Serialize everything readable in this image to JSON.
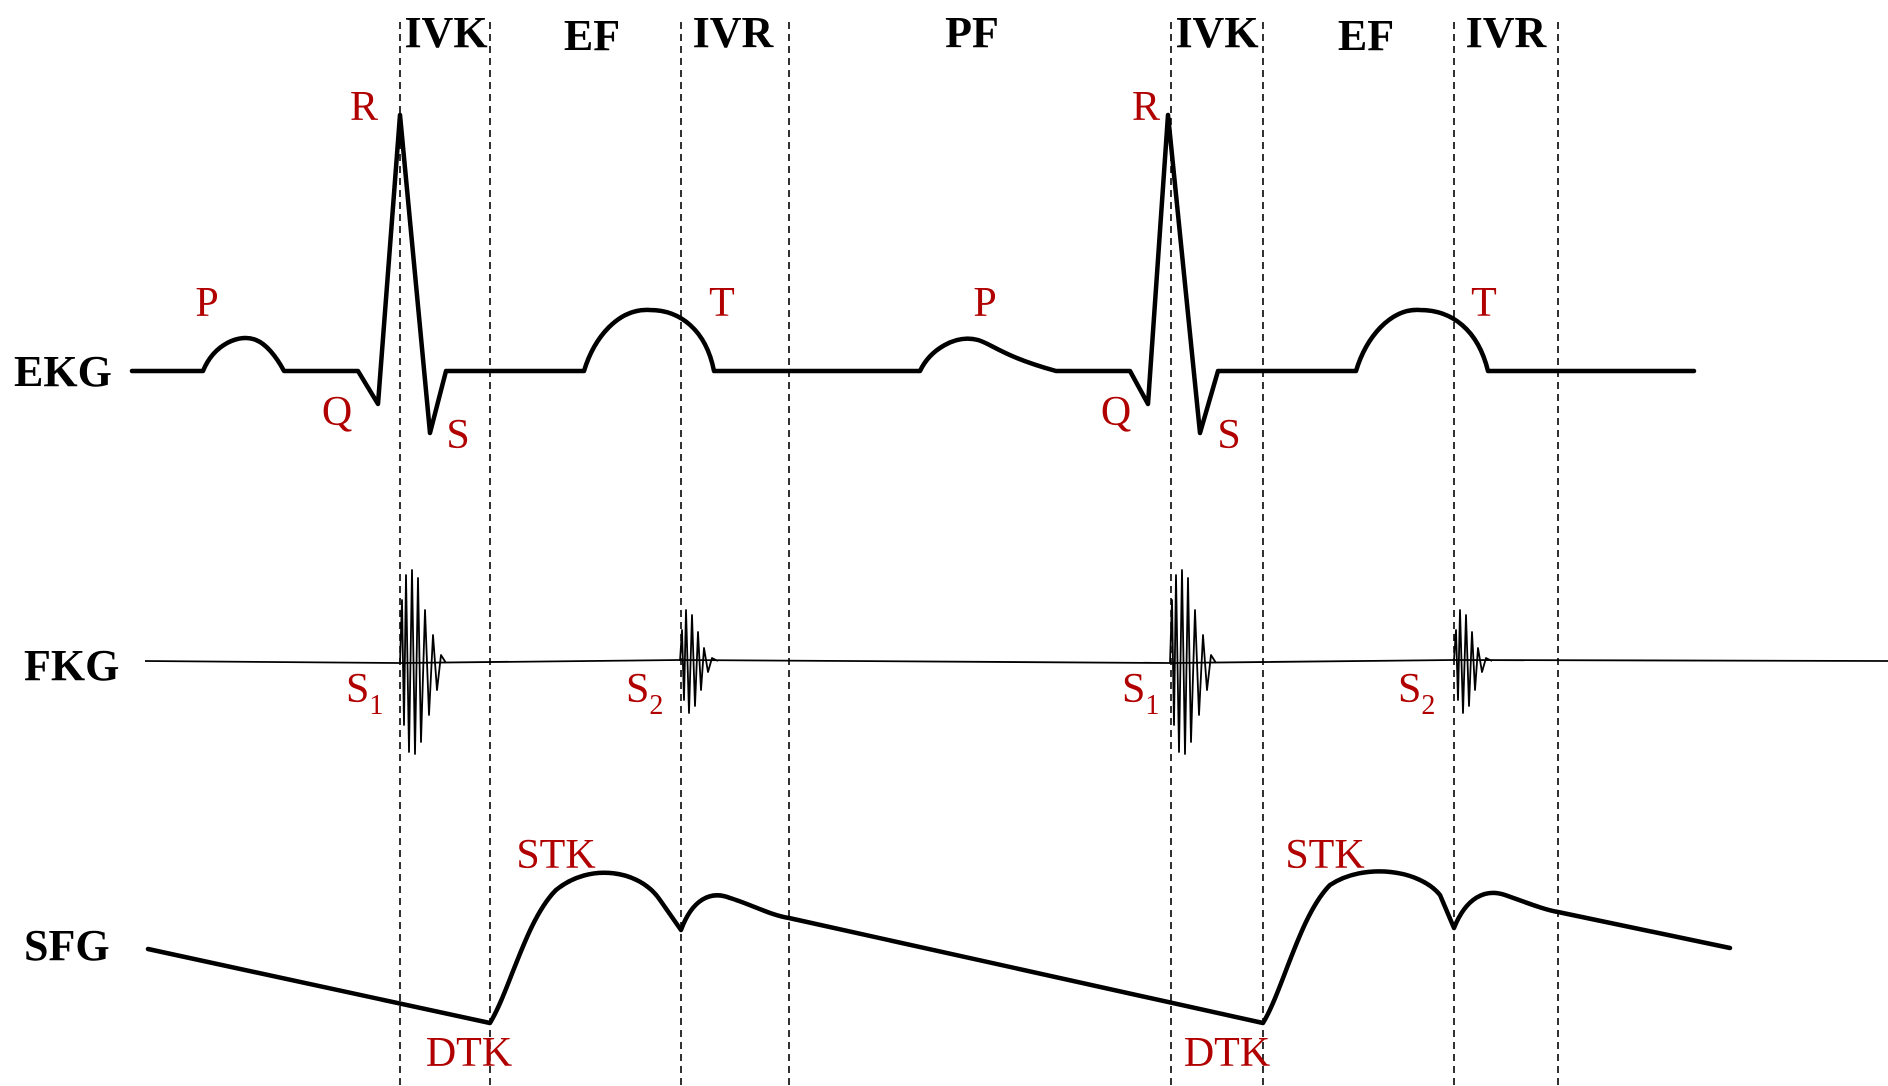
{
  "phases": [
    {
      "label": "IVK"
    },
    {
      "label": "EF"
    },
    {
      "label": "IVR"
    },
    {
      "label": "PF"
    },
    {
      "label": "IVK"
    },
    {
      "label": "EF"
    },
    {
      "label": "IVR"
    }
  ],
  "traces": {
    "ekg": "EKG",
    "fkg": "FKG",
    "sfg": "SFG"
  },
  "ekg_waves": [
    {
      "label": "P"
    },
    {
      "label": "R"
    },
    {
      "label": "Q"
    },
    {
      "label": "S"
    },
    {
      "label": "T"
    },
    {
      "label": "P"
    },
    {
      "label": "R"
    },
    {
      "label": "Q"
    },
    {
      "label": "S"
    },
    {
      "label": "T"
    }
  ],
  "heart_sounds": [
    {
      "base": "S",
      "sub": "1"
    },
    {
      "base": "S",
      "sub": "2"
    },
    {
      "base": "S",
      "sub": "1"
    },
    {
      "base": "S",
      "sub": "2"
    }
  ],
  "sfg_points": [
    {
      "label": "STK"
    },
    {
      "label": "DTK"
    },
    {
      "label": "STK"
    },
    {
      "label": "DTK"
    }
  ],
  "colors": {
    "annotation": "#b00000",
    "lines": "#000000"
  }
}
